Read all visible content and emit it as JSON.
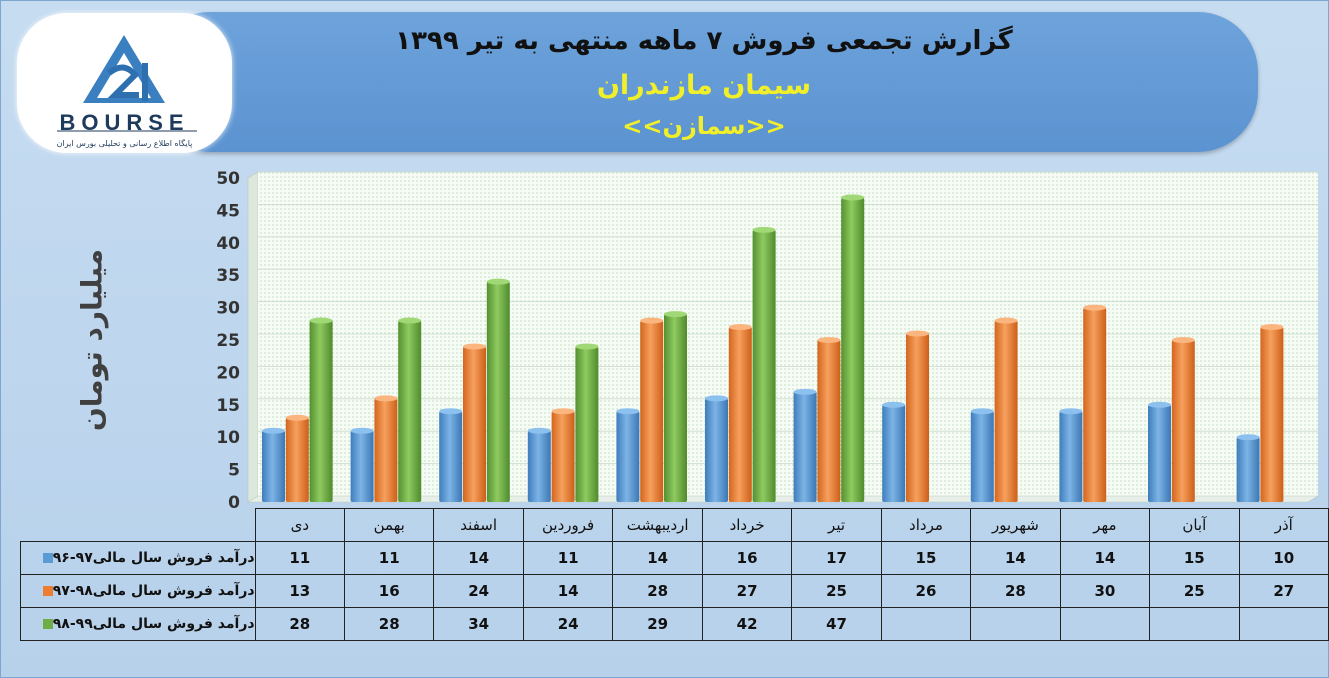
{
  "header": {
    "title": "گزارش تجمعی فروش ۷ ماهه منتهی به تیر ۱۳۹۹",
    "company": "سیمان مازندران",
    "symbol": "<<سمازن>>"
  },
  "logo": {
    "word": "BOURSE",
    "subtitle": "پایگاه اطلاع رسانی و تحلیلی بورس ایران"
  },
  "colors": {
    "blue": "#5b9bd5",
    "orange": "#ed7d31",
    "green": "#70ad47"
  },
  "chart_data": {
    "type": "bar",
    "title": "گزارش تجمعی فروش ۷ ماهه منتهی به تیر ۱۳۹۹",
    "ylabel": "میلیارد تومان",
    "xlabel": "",
    "ylim": [
      0,
      50
    ],
    "yticks": [
      0,
      5,
      10,
      15,
      20,
      25,
      30,
      35,
      40,
      45,
      50
    ],
    "grid": true,
    "categories": [
      "دی",
      "بهمن",
      "اسفند",
      "فروردین",
      "اردیبهشت",
      "خرداد",
      "تیر",
      "مرداد",
      "شهریور",
      "مهر",
      "آبان",
      "آذر"
    ],
    "series": [
      {
        "name": "درآمد فروش سال مالی۹۷-۹۶",
        "color": "#5b9bd5",
        "values": [
          11,
          11,
          14,
          11,
          14,
          16,
          17,
          15,
          14,
          14,
          15,
          10
        ]
      },
      {
        "name": "درآمد فروش سال مالی۹۸-۹۷",
        "color": "#ed7d31",
        "values": [
          13,
          16,
          24,
          14,
          28,
          27,
          25,
          26,
          28,
          30,
          25,
          27
        ]
      },
      {
        "name": "درآمد فروش سال مالی۹۹-۹۸",
        "color": "#70ad47",
        "values": [
          28,
          28,
          34,
          24,
          29,
          42,
          47,
          null,
          null,
          null,
          null,
          null
        ]
      }
    ]
  }
}
